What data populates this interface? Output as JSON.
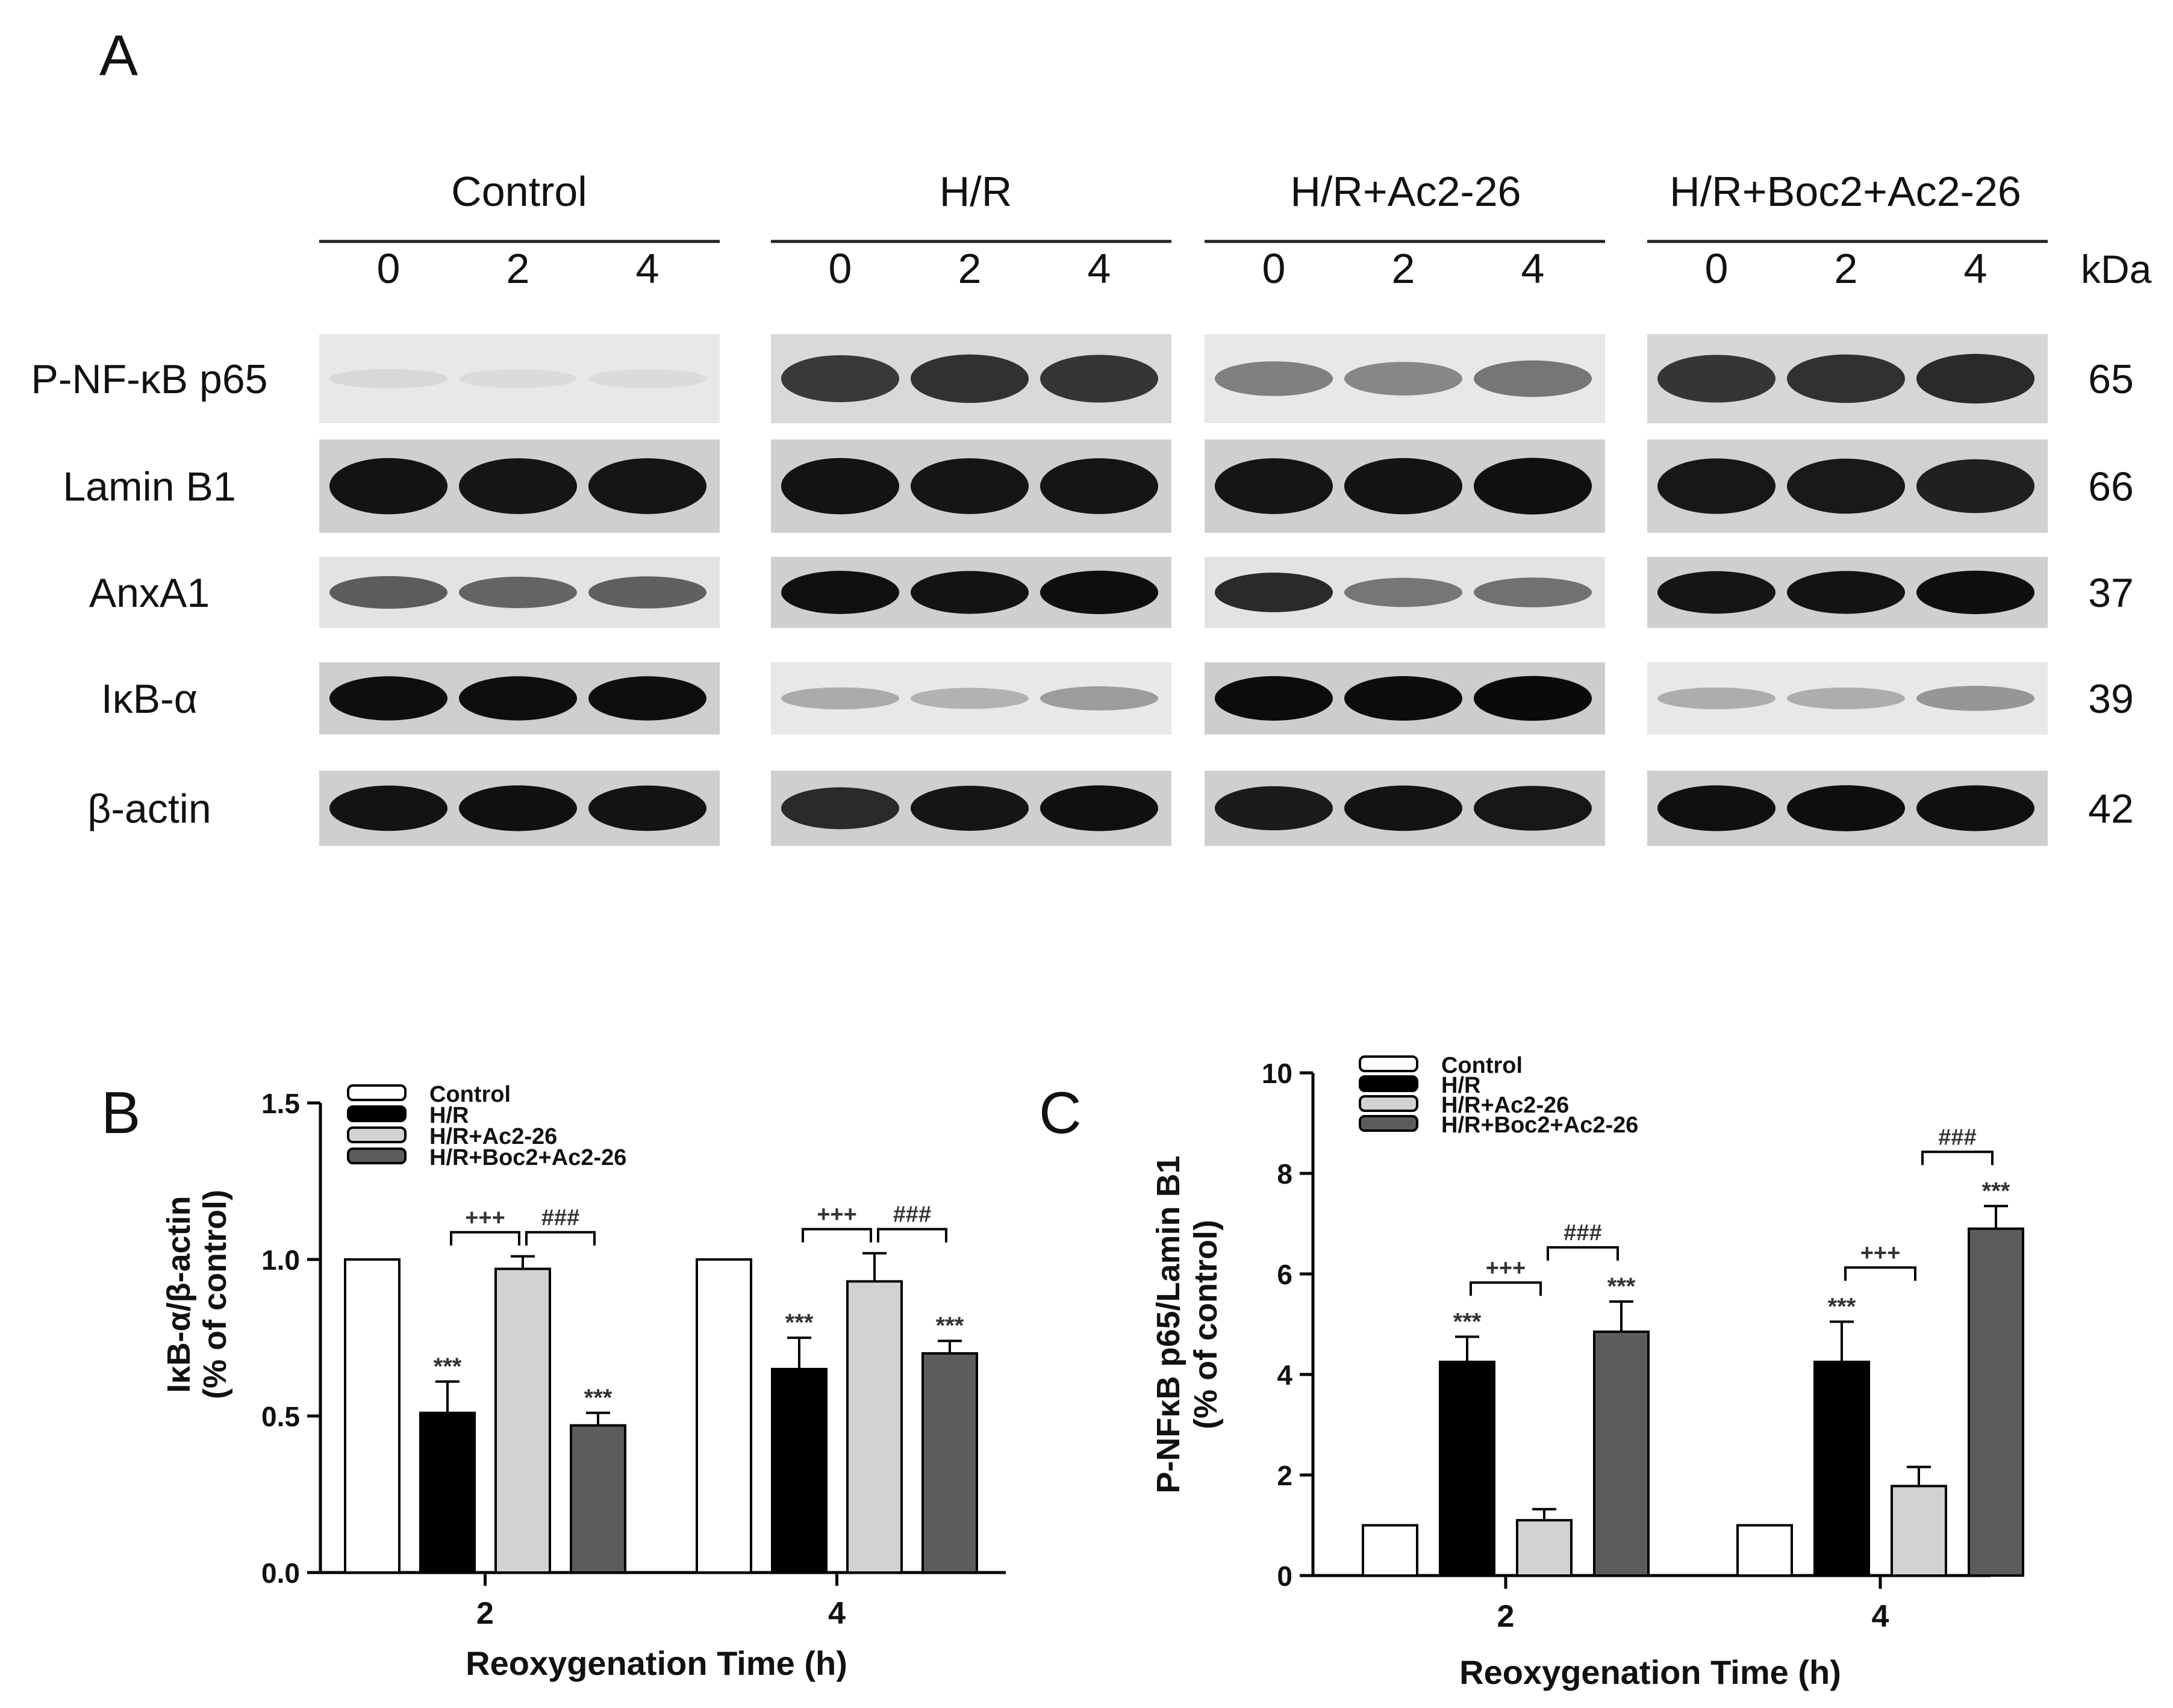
{
  "panel_a": {
    "letter": "A",
    "groups": [
      "Control",
      "H/R",
      "H/R+Ac2-26",
      "H/R+Boc2+Ac2-26"
    ],
    "lane_labels": [
      "0",
      "2",
      "4"
    ],
    "kda_header": "kDa",
    "rows": [
      {
        "label": "P-NF-κB p65",
        "kda": "65",
        "group_intensity": [
          0.04,
          0.78,
          0.45,
          0.82
        ],
        "lane_intensity": [
          [
            0.04,
            0.03,
            0.03
          ],
          [
            0.78,
            0.82,
            0.8
          ],
          [
            0.45,
            0.42,
            0.5
          ],
          [
            0.8,
            0.82,
            0.85
          ]
        ]
      },
      {
        "label": "Lamin B1",
        "kda": "66",
        "group_intensity": [
          0.95,
          0.95,
          0.95,
          0.92
        ],
        "lane_intensity": [
          [
            0.96,
            0.95,
            0.95
          ],
          [
            0.96,
            0.95,
            0.95
          ],
          [
            0.95,
            0.96,
            0.97
          ],
          [
            0.94,
            0.93,
            0.9
          ]
        ]
      },
      {
        "label": "AnxA1",
        "kda": "37",
        "group_intensity": [
          0.6,
          0.95,
          0.6,
          0.95
        ],
        "lane_intensity": [
          [
            0.62,
            0.58,
            0.6
          ],
          [
            0.97,
            0.96,
            0.98
          ],
          [
            0.85,
            0.5,
            0.52
          ],
          [
            0.95,
            0.96,
            0.98
          ]
        ]
      },
      {
        "label": "IκB-α",
        "kda": "39",
        "group_intensity": [
          0.98,
          0.25,
          0.99,
          0.25
        ],
        "lane_intensity": [
          [
            0.98,
            0.98,
            0.98
          ],
          [
            0.25,
            0.22,
            0.32
          ],
          [
            0.99,
            0.99,
            1.0
          ],
          [
            0.24,
            0.24,
            0.35
          ]
        ]
      },
      {
        "label": "β-actin",
        "kda": "42",
        "group_intensity": [
          0.96,
          0.95,
          0.95,
          0.97
        ],
        "lane_intensity": [
          [
            0.96,
            0.97,
            0.96
          ],
          [
            0.85,
            0.95,
            0.97
          ],
          [
            0.92,
            0.96,
            0.94
          ],
          [
            0.97,
            0.98,
            0.97
          ]
        ]
      }
    ]
  },
  "panel_b": {
    "letter": "B",
    "significance": {
      "pair1_2h": "+++",
      "pair2_2h": "###",
      "pair1_4h": "+++",
      "pair2_4h": "###",
      "star": "***"
    }
  },
  "panel_c": {
    "letter": "C",
    "significance": {
      "pair1_2h": "+++",
      "pair2_2h": "###",
      "pair1_4h": "+++",
      "pair2_4h": "###",
      "star": "***"
    }
  },
  "colors": {
    "control": "#ffffff",
    "hr": "#000000",
    "hr_ac": "#d2d2d2",
    "hr_boc": "#5c5c5c",
    "bar_outline": "#000000",
    "axis": "#000000",
    "text": "#111111",
    "significance": "#333333",
    "blot_bg": "#e4e4e4"
  },
  "chart_data": [
    {
      "type": "bar",
      "panel": "B",
      "categories": [
        "2",
        "4"
      ],
      "xlabel": "Reoxygenation Time (h)",
      "ylabel": "IκB-α/β-actin",
      "ylabel2": "(% of control)",
      "ylim": [
        0,
        1.5
      ],
      "yticks": [
        "0.0",
        "0.5",
        "1.0",
        "1.5"
      ],
      "legend_position": "top-left",
      "series": [
        {
          "name": "Control",
          "values": [
            1.0,
            1.0
          ],
          "errors": [
            0,
            0
          ],
          "stars": [
            "",
            ""
          ]
        },
        {
          "name": "H/R",
          "values": [
            0.51,
            0.65
          ],
          "errors": [
            0.1,
            0.1
          ],
          "stars": [
            "***",
            "***"
          ]
        },
        {
          "name": "H/R+Ac2-26",
          "values": [
            0.97,
            0.93
          ],
          "errors": [
            0.04,
            0.09
          ],
          "stars": [
            "",
            ""
          ]
        },
        {
          "name": "H/R+Boc2+Ac2-26",
          "values": [
            0.47,
            0.7
          ],
          "errors": [
            0.04,
            0.04
          ],
          "stars": [
            "***",
            "***"
          ]
        }
      ]
    },
    {
      "type": "bar",
      "panel": "C",
      "categories": [
        "2",
        "4"
      ],
      "xlabel": "Reoxygenation Time (h)",
      "ylabel": "P-NFκB p65/Lamin B1",
      "ylabel2": "(% of control)",
      "ylim": [
        0,
        10
      ],
      "yticks": [
        "0",
        "2",
        "4",
        "6",
        "8",
        "10"
      ],
      "legend_position": "top-left",
      "series": [
        {
          "name": "Control",
          "values": [
            1.0,
            1.0
          ],
          "errors": [
            0,
            0
          ],
          "stars": [
            "",
            ""
          ]
        },
        {
          "name": "H/R",
          "values": [
            4.25,
            4.25
          ],
          "errors": [
            0.5,
            0.8
          ],
          "stars": [
            "***",
            "***"
          ]
        },
        {
          "name": "H/R+Ac2-26",
          "values": [
            1.1,
            1.78
          ],
          "errors": [
            0.22,
            0.38
          ],
          "stars": [
            "",
            ""
          ]
        },
        {
          "name": "H/R+Boc2+Ac2-26",
          "values": [
            4.85,
            6.9
          ],
          "errors": [
            0.6,
            0.45
          ],
          "stars": [
            "***",
            "***"
          ]
        }
      ]
    }
  ]
}
